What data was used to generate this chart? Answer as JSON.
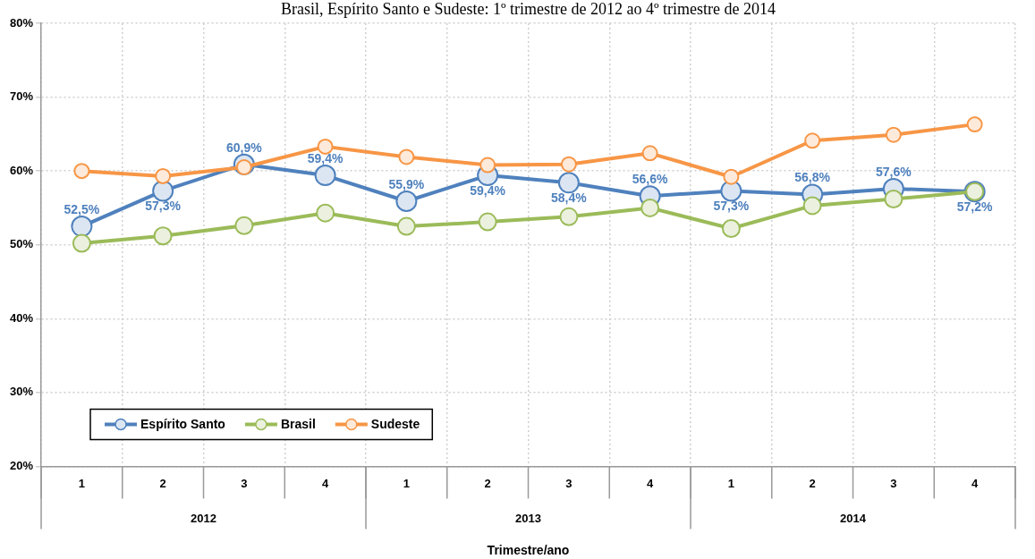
{
  "chart_data": {
    "type": "line",
    "title": "Brasil, Espírito Santo e Sudeste: 1º trimestre de 2012 ao 4º trimestre de 2014",
    "xlabel": "Trimestre/ano",
    "categories": [
      "1",
      "2",
      "3",
      "4",
      "1",
      "2",
      "3",
      "4",
      "1",
      "2",
      "3",
      "4"
    ],
    "annotations": [
      "2012",
      "2013",
      "2014"
    ],
    "series": [
      {
        "name": "Espírito Santo",
        "color": "#4f81bd",
        "values": [
          52.5,
          57.3,
          60.9,
          59.4,
          55.9,
          59.4,
          58.4,
          56.6,
          57.3,
          56.8,
          57.6,
          57.2
        ],
        "value_labels": [
          "52,5%",
          "57,3%",
          "60,9%",
          "59,4%",
          "55,9%",
          "59,4%",
          "58,4%",
          "56,6%",
          "57,3%",
          "56,8%",
          "57,6%",
          "57,2%"
        ]
      },
      {
        "name": "Brasil",
        "color": "#9bbb59",
        "values": [
          50.2,
          51.2,
          52.6,
          54.3,
          52.5,
          53.1,
          53.8,
          55.0,
          52.2,
          55.3,
          56.2,
          57.2
        ]
      },
      {
        "name": "Sudeste",
        "color": "#f79646",
        "values": [
          60.0,
          59.3,
          60.5,
          63.3,
          61.9,
          60.8,
          60.9,
          62.4,
          59.2,
          64.1,
          64.9,
          66.3
        ]
      }
    ],
    "ylim": [
      20,
      80
    ],
    "yticks": [
      {
        "value": 20,
        "label": "20%"
      },
      {
        "value": 30,
        "label": "30%"
      },
      {
        "value": 40,
        "label": "40%"
      },
      {
        "value": 50,
        "label": "50%"
      },
      {
        "value": 60,
        "label": "60%"
      },
      {
        "value": 70,
        "label": "70%"
      },
      {
        "value": 80,
        "label": "80%"
      }
    ],
    "grid": true,
    "legend": "bottom left",
    "marker": "circle",
    "line_style": "solid"
  }
}
